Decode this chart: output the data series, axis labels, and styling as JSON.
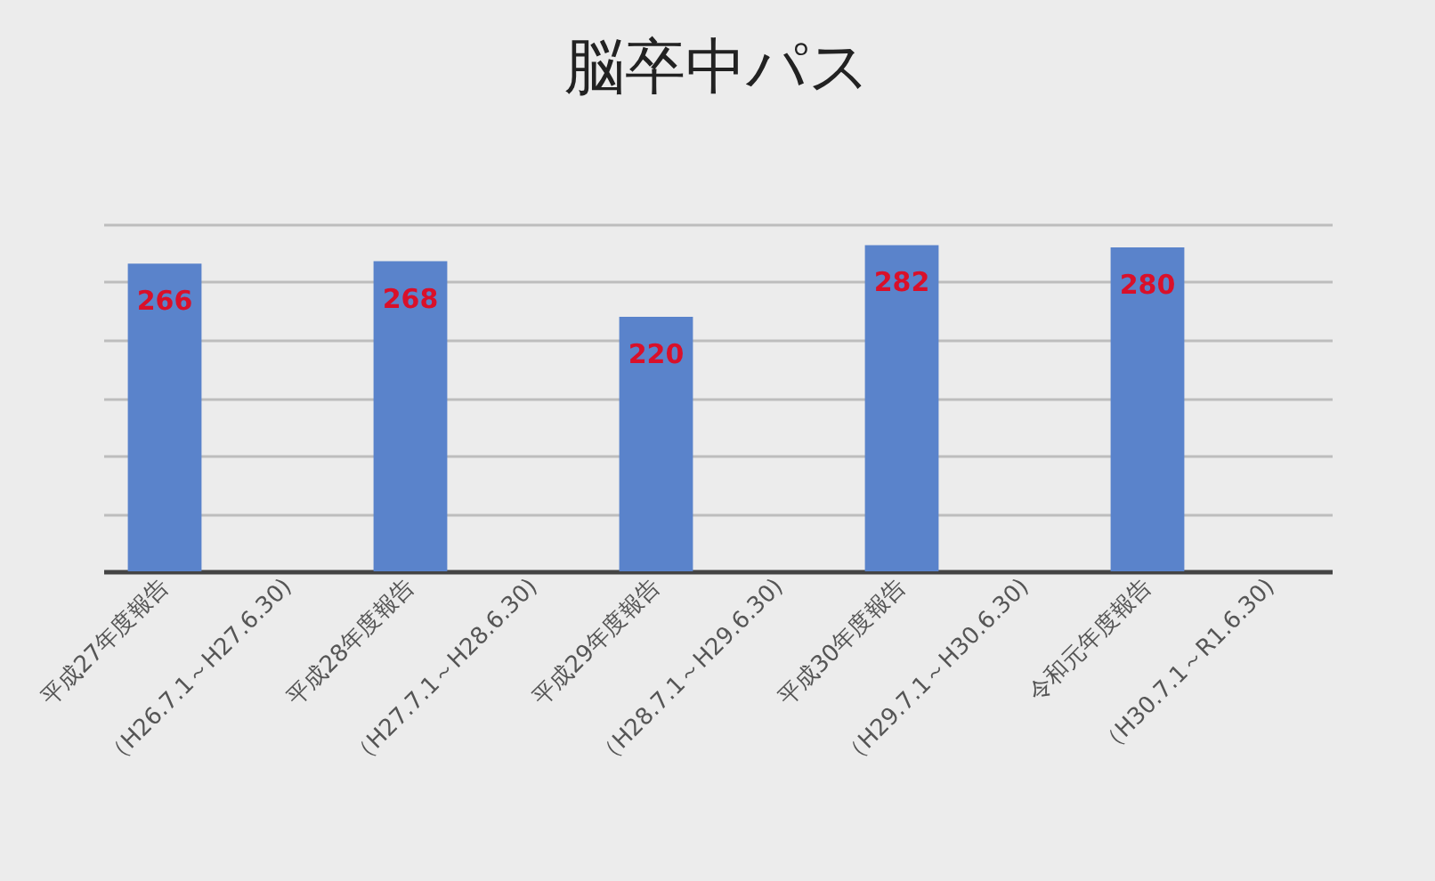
{
  "chart_data": {
    "type": "bar",
    "title": "脳卒中パス",
    "categories": [
      "平成27年度報告",
      "（H26.7.1～H27.6.30)",
      "平成28年度報告",
      "（H27.7.1～H28.6.30)",
      "平成29年度報告",
      "（H28.7.1～H29.6.30)",
      "平成30年度報告",
      "（H29.7.1～H30.6.30)",
      "令和元年度報告",
      "（H30.7.1～R1.6.30)"
    ],
    "values": [
      266,
      null,
      268,
      null,
      220,
      null,
      282,
      null,
      280,
      null
    ],
    "color": "#5a83cb",
    "ylim": [
      0,
      300
    ],
    "yticks": [
      0,
      50,
      100,
      150,
      200,
      250,
      300
    ],
    "grid": "y",
    "data_labels": true,
    "tick_labels": "x"
  }
}
